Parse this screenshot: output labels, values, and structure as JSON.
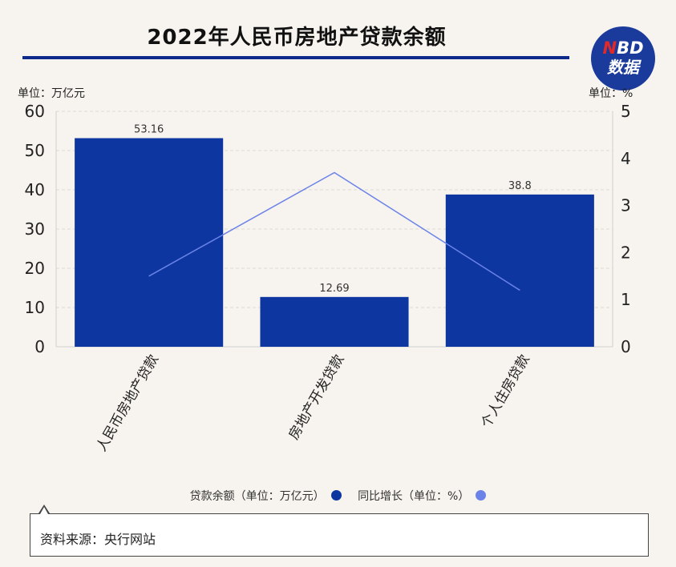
{
  "header": {
    "title": "2022年人民币房地产贷款余额"
  },
  "logo": {
    "line1_n": "N",
    "line1_rest": "BD",
    "line2": "数据"
  },
  "units": {
    "left": "单位：万亿元",
    "right": "单位：%"
  },
  "colors": {
    "bar": "#0d36a0",
    "line": "#6b82e8",
    "title_rule": "#0d2a8a"
  },
  "chart_data": {
    "type": "bar",
    "categories": [
      "人民币房地产贷款",
      "房地产开发贷款",
      "个人住房贷款"
    ],
    "series": [
      {
        "name": "贷款余额（单位：万亿元）",
        "type": "bar",
        "axis": "left",
        "values": [
          53.16,
          12.69,
          38.8
        ]
      },
      {
        "name": "同比增长（单位：%）",
        "type": "line",
        "axis": "right",
        "values": [
          1.5,
          3.7,
          1.2
        ]
      }
    ],
    "y_left": {
      "ylim": [
        0,
        60
      ],
      "ticks": [
        "0",
        "10",
        "20",
        "30",
        "40",
        "50",
        "60"
      ]
    },
    "y_right": {
      "ylim": [
        0,
        5
      ],
      "ticks": [
        "0",
        "1",
        "2",
        "3",
        "4",
        "5"
      ]
    },
    "data_labels": [
      "53.16",
      "12.69",
      "38.8"
    ],
    "grid": true,
    "legend_position": "bottom"
  },
  "legend": [
    {
      "label": "贷款余额（单位：万亿元）",
      "color": "#0d36a0"
    },
    {
      "label": "同比增长（单位：%）",
      "color": "#6b82e8"
    }
  ],
  "source": {
    "text": "资料来源：央行网站"
  }
}
